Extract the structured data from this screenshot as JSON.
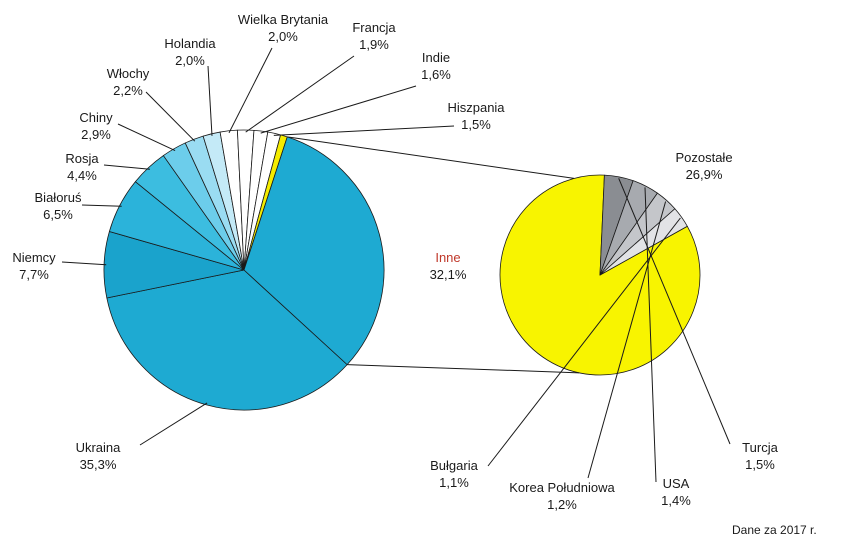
{
  "chart_data": {
    "type": "pie",
    "note": "Dane za 2017 r.",
    "main_pie": {
      "slices": [
        {
          "name": "Ukraina",
          "value": "35,3%",
          "pct": 35.3,
          "color": "#1eaad2"
        },
        {
          "name": "Niemcy",
          "value": "7,7%",
          "pct": 7.7,
          "color": "#1aa3cc"
        },
        {
          "name": "Białoruś",
          "value": "6,5%",
          "pct": 6.5,
          "color": "#2bb3da"
        },
        {
          "name": "Rosja",
          "value": "4,4%",
          "pct": 4.4,
          "color": "#3cbde0"
        },
        {
          "name": "Chiny",
          "value": "2,9%",
          "pct": 2.9,
          "color": "#6ccdeb"
        },
        {
          "name": "Włochy",
          "value": "2,2%",
          "pct": 2.2,
          "color": "#9adcf2"
        },
        {
          "name": "Holandia",
          "value": "2,0%",
          "pct": 2.0,
          "color": "#c4eaf7"
        },
        {
          "name": "Wielka Brytania",
          "value": "2,0%",
          "pct": 2.0,
          "color": "#ffffff"
        },
        {
          "name": "Francja",
          "value": "1,9%",
          "pct": 1.9,
          "color": "#ffffff"
        },
        {
          "name": "Indie",
          "value": "1,6%",
          "pct": 1.6,
          "color": "#ffffff"
        },
        {
          "name": "Hiszpania",
          "value": "1,5%",
          "pct": 1.5,
          "color": "#ffffff"
        },
        {
          "name": "Pozostałe",
          "value": "",
          "pct": 0.8,
          "color": "#f4ec00"
        },
        {
          "name": "Inne",
          "value": "32,1%",
          "pct": 32.1,
          "color": "#1eaad2"
        }
      ]
    },
    "detail_pie": {
      "of": "Inne",
      "slices": [
        {
          "name": "Pozostałe",
          "value": "26,9%",
          "pct": 26.9,
          "color": "#f8f400"
        },
        {
          "name": "Turcja",
          "value": "1,5%",
          "pct": 1.5,
          "color": "#8a8d92"
        },
        {
          "name": "USA",
          "value": "1,4%",
          "pct": 1.4,
          "color": "#a7aaaf"
        },
        {
          "name": "Korea Południowa",
          "value": "1,2%",
          "pct": 1.2,
          "color": "#c4c6ca"
        },
        {
          "name": "Bułgaria",
          "value": "1,1%",
          "pct": 1.1,
          "color": "#e2e3e6"
        }
      ]
    }
  }
}
